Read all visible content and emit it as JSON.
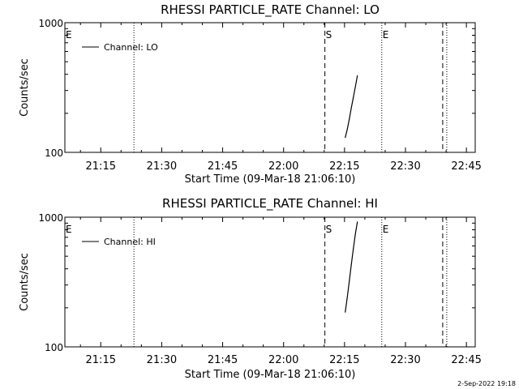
{
  "footer": "2-Sep-2022 19:18",
  "chart_data": [
    {
      "type": "line",
      "title": "RHESSI PARTICLE_RATE Channel: LO",
      "xlabel": "Start Time (09-Mar-18 21:06:10)",
      "ylabel": "Counts/sec",
      "yscale": "log",
      "ylim": [
        100,
        1000
      ],
      "xlim": [
        "21:06:10",
        "22:47:10"
      ],
      "xticks": [
        "21:15",
        "21:30",
        "21:45",
        "22:00",
        "22:15",
        "22:30",
        "22:45"
      ],
      "yticks": [
        "100",
        "1000"
      ],
      "legend": {
        "label": "Channel: LO",
        "placement": "top-left"
      },
      "grid": false,
      "markers": [
        {
          "label": "E",
          "time": "21:06:10",
          "style": "none"
        },
        {
          "label": "",
          "time": "21:23:10",
          "style": "dotted"
        },
        {
          "label": "S",
          "time": "22:10:10",
          "style": "dashed"
        },
        {
          "label": "E",
          "time": "22:24:10",
          "style": "dotted"
        },
        {
          "label": "",
          "time": "22:39:10",
          "style": "dashed"
        },
        {
          "label": "",
          "time": "22:40:10",
          "style": "dotted"
        }
      ],
      "series": [
        {
          "name": "Channel: LO",
          "points": [
            [
              "22:15:10",
              130
            ],
            [
              "22:15:40",
              150
            ],
            [
              "22:16:10",
              180
            ],
            [
              "22:16:40",
              220
            ],
            [
              "22:17:10",
              265
            ],
            [
              "22:17:40",
              320
            ],
            [
              "22:18:10",
              390
            ]
          ]
        }
      ]
    },
    {
      "type": "line",
      "title": "RHESSI PARTICLE_RATE Channel: HI",
      "xlabel": "Start Time (09-Mar-18 21:06:10)",
      "ylabel": "Counts/sec",
      "yscale": "log",
      "ylim": [
        100,
        1000
      ],
      "xlim": [
        "21:06:10",
        "22:47:10"
      ],
      "xticks": [
        "21:15",
        "21:30",
        "21:45",
        "22:00",
        "22:15",
        "22:30",
        "22:45"
      ],
      "yticks": [
        "100",
        "1000"
      ],
      "legend": {
        "label": "Channel: HI",
        "placement": "top-left"
      },
      "grid": false,
      "markers": [
        {
          "label": "E",
          "time": "21:06:10",
          "style": "none"
        },
        {
          "label": "",
          "time": "21:23:10",
          "style": "dotted"
        },
        {
          "label": "S",
          "time": "22:10:10",
          "style": "dashed"
        },
        {
          "label": "E",
          "time": "22:24:10",
          "style": "dotted"
        },
        {
          "label": "",
          "time": "22:39:10",
          "style": "dashed"
        },
        {
          "label": "",
          "time": "22:40:10",
          "style": "dotted"
        }
      ],
      "series": [
        {
          "name": "Channel: HI",
          "points": [
            [
              "22:15:10",
              185
            ],
            [
              "22:15:40",
              240
            ],
            [
              "22:16:10",
              320
            ],
            [
              "22:16:40",
              430
            ],
            [
              "22:17:10",
              570
            ],
            [
              "22:17:40",
              740
            ],
            [
              "22:18:10",
              920
            ]
          ]
        }
      ]
    }
  ]
}
